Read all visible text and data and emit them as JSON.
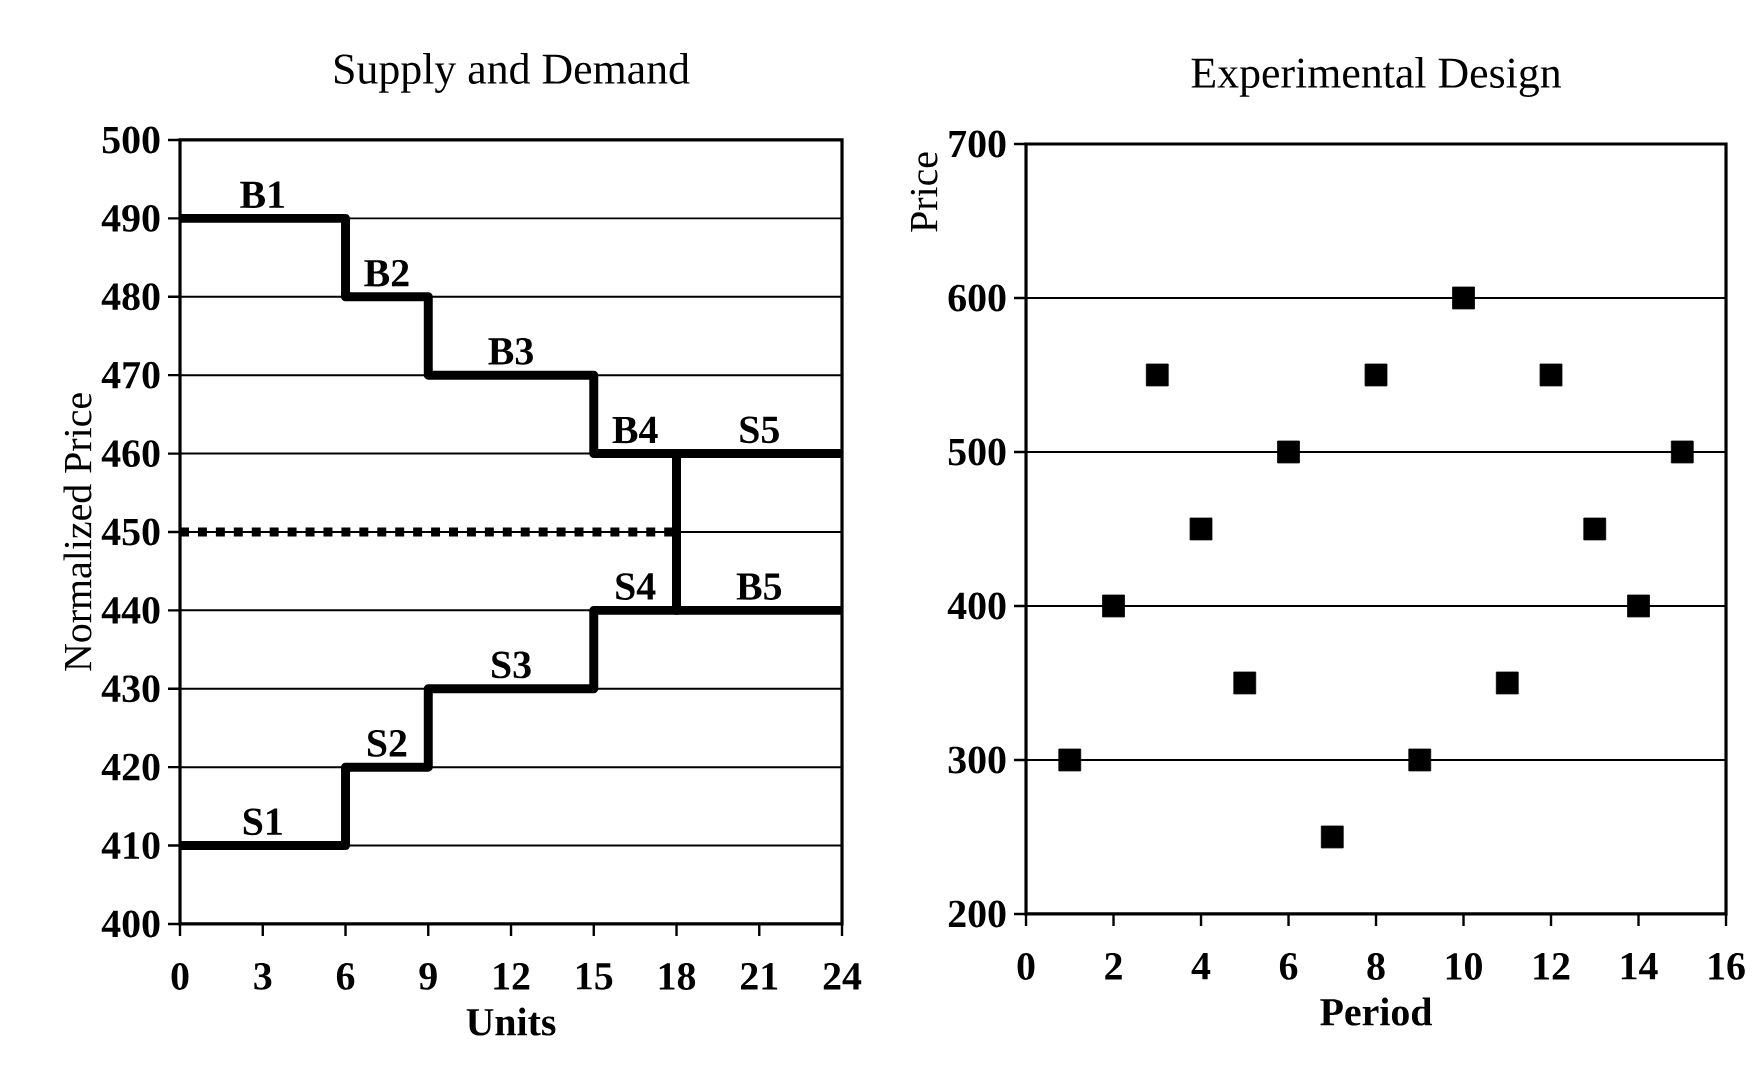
{
  "chart_data": [
    {
      "type": "step",
      "title": "Supply and Demand",
      "xlabel": "Units",
      "ylabel": "Normalized Price",
      "xlim": [
        0,
        24
      ],
      "ylim": [
        400,
        500
      ],
      "xticks": [
        0,
        3,
        6,
        9,
        12,
        15,
        18,
        21,
        24
      ],
      "yticks": [
        400,
        410,
        420,
        430,
        440,
        450,
        460,
        470,
        480,
        490,
        500
      ],
      "grid": "y",
      "series": [
        {
          "type": "step",
          "color": "#000000",
          "x": [
            0,
            6,
            9,
            15,
            18,
            24
          ],
          "values": [
            490,
            480,
            470,
            460,
            440,
            440
          ]
        },
        {
          "type": "step",
          "color": "#000000",
          "x": [
            0,
            6,
            9,
            15,
            18,
            24
          ],
          "values": [
            410,
            420,
            430,
            440,
            460,
            460
          ]
        },
        {
          "type": "line",
          "color": "#000000",
          "line_style": "dotted",
          "x": [
            0,
            18
          ],
          "values": [
            450,
            450
          ]
        }
      ],
      "annotations": [
        {
          "text": "B1",
          "x": 3,
          "y": 490
        },
        {
          "text": "B2",
          "x": 7.5,
          "y": 480
        },
        {
          "text": "B3",
          "x": 12,
          "y": 470
        },
        {
          "text": "B4",
          "x": 16.5,
          "y": 460
        },
        {
          "text": "S5",
          "x": 21,
          "y": 460
        },
        {
          "text": "S4",
          "x": 16.5,
          "y": 440
        },
        {
          "text": "B5",
          "x": 21,
          "y": 440
        },
        {
          "text": "S3",
          "x": 12,
          "y": 430
        },
        {
          "text": "S2",
          "x": 7.5,
          "y": 420
        },
        {
          "text": "S1",
          "x": 3,
          "y": 410
        }
      ]
    },
    {
      "type": "scatter",
      "title": "Experimental Design",
      "xlabel": "Period",
      "ylabel": "Price",
      "xlim": [
        0,
        16
      ],
      "ylim": [
        200,
        700
      ],
      "xticks": [
        0,
        2,
        4,
        6,
        8,
        10,
        12,
        14,
        16
      ],
      "yticks": [
        200,
        300,
        400,
        500,
        600,
        700
      ],
      "grid": "y",
      "marker": "square",
      "color": "#000000",
      "x": [
        1,
        2,
        3,
        4,
        5,
        6,
        7,
        8,
        9,
        10,
        11,
        12,
        13,
        14,
        15
      ],
      "values": [
        300,
        400,
        550,
        450,
        350,
        500,
        250,
        550,
        300,
        600,
        350,
        550,
        450,
        400,
        500
      ]
    }
  ]
}
